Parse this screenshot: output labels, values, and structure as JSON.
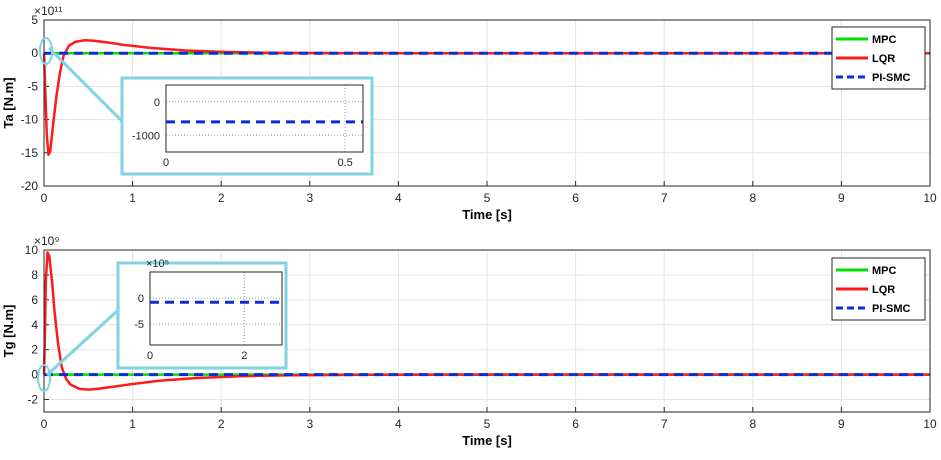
{
  "chart_data": [
    {
      "type": "line",
      "ylabel": "Ta [N.m]",
      "xlabel": "Time [s]",
      "y_exponent": "×10¹¹",
      "xlim": [
        0,
        10
      ],
      "ylim": [
        -20,
        5
      ],
      "xticks": [
        0,
        1,
        2,
        3,
        4,
        5,
        6,
        7,
        8,
        9,
        10
      ],
      "yticks": [
        5,
        0,
        -5,
        -10,
        -15,
        -20
      ],
      "grid": true,
      "legend_position": "top-right",
      "series": [
        {
          "name": "MPC",
          "color": "#00e000",
          "style": "solid",
          "x": [
            0,
            10
          ],
          "y": [
            0,
            0
          ]
        },
        {
          "name": "LQR",
          "color": "#ff1a1a",
          "style": "solid",
          "x": [
            0,
            0.01,
            0.03,
            0.05,
            0.07,
            0.1,
            0.14,
            0.18,
            0.22,
            0.28,
            0.35,
            0.45,
            0.55,
            0.7,
            0.9,
            1.2,
            1.6,
            2.0,
            2.5,
            3.0,
            3.5,
            4.0,
            5.0,
            10
          ],
          "y": [
            0,
            -4,
            -12,
            -15.3,
            -14.8,
            -11,
            -6.5,
            -3,
            -0.4,
            1.1,
            1.7,
            1.95,
            1.9,
            1.65,
            1.25,
            0.8,
            0.4,
            0.2,
            0.08,
            0.03,
            0.01,
            0,
            0,
            0
          ]
        },
        {
          "name": "PI-SMC",
          "color": "#0a2bd8",
          "style": "dashed",
          "x": [
            0,
            10
          ],
          "y": [
            0,
            0
          ]
        }
      ],
      "inset": {
        "xlim": [
          0,
          0.55
        ],
        "ylim": [
          -1500,
          500
        ],
        "xticks": [
          0,
          0.5
        ],
        "yticks": [
          0,
          -1000
        ],
        "exponent": "",
        "series": [
          {
            "name": "PI-SMC",
            "color": "#0a2bd8",
            "style": "dashed",
            "x": [
              0,
              0.55
            ],
            "y": [
              -600,
              -600
            ]
          }
        ]
      }
    },
    {
      "type": "line",
      "ylabel": "Tg [N.m]",
      "xlabel": "Time [s]",
      "y_exponent": "×10⁹",
      "xlim": [
        0,
        10
      ],
      "ylim": [
        -3,
        10
      ],
      "xticks": [
        0,
        1,
        2,
        3,
        4,
        5,
        6,
        7,
        8,
        9,
        10
      ],
      "yticks": [
        10,
        8,
        6,
        4,
        2,
        0,
        -2
      ],
      "grid": true,
      "legend_position": "top-right",
      "series": [
        {
          "name": "MPC",
          "color": "#00e000",
          "style": "solid",
          "x": [
            0,
            10
          ],
          "y": [
            0,
            0
          ]
        },
        {
          "name": "LQR",
          "color": "#ff1a1a",
          "style": "solid",
          "x": [
            0,
            0.01,
            0.02,
            0.04,
            0.06,
            0.09,
            0.12,
            0.16,
            0.2,
            0.25,
            0.3,
            0.4,
            0.5,
            0.6,
            0.8,
            1.0,
            1.3,
            1.7,
            2.2,
            2.8,
            3.5,
            4.5,
            10
          ],
          "y": [
            0,
            3,
            7.5,
            9.8,
            9.5,
            7.5,
            5,
            2.4,
            0.6,
            -0.35,
            -0.8,
            -1.15,
            -1.2,
            -1.15,
            -0.95,
            -0.75,
            -0.5,
            -0.28,
            -0.13,
            -0.05,
            -0.02,
            0,
            0
          ]
        },
        {
          "name": "PI-SMC",
          "color": "#0a2bd8",
          "style": "dashed",
          "x": [
            0,
            10
          ],
          "y": [
            0,
            0
          ]
        }
      ],
      "inset": {
        "xlim": [
          0,
          2.8
        ],
        "ylim": [
          -9,
          5
        ],
        "xticks": [
          0,
          2
        ],
        "yticks": [
          0,
          -5
        ],
        "exponent": "×10⁵",
        "series": [
          {
            "name": "PI-SMC",
            "color": "#0a2bd8",
            "style": "dashed",
            "x": [
              0,
              2.8
            ],
            "y": [
              -0.8,
              -0.8
            ]
          }
        ]
      }
    }
  ]
}
